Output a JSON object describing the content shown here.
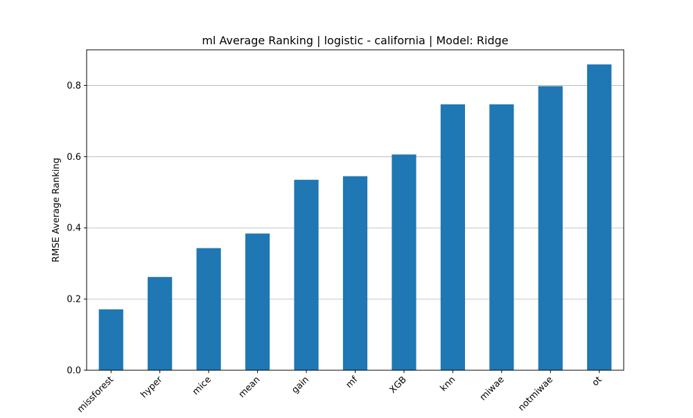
{
  "chart_data": {
    "type": "bar",
    "title": "ml Average Ranking | logistic - california | Model: Ridge",
    "xlabel": "",
    "ylabel": "RMSE Average Ranking",
    "categories": [
      "missforest",
      "hyper",
      "mice",
      "mean",
      "gain",
      "mf",
      "XGB",
      "knn",
      "miwae",
      "notmiwae",
      "ot"
    ],
    "values": [
      0.171,
      0.262,
      0.343,
      0.384,
      0.535,
      0.545,
      0.606,
      0.747,
      0.747,
      0.798,
      0.859
    ],
    "ylim": [
      0,
      0.9
    ],
    "yticks": [
      0.0,
      0.2,
      0.4,
      0.6,
      0.8
    ],
    "ytick_labels": [
      "0.0",
      "0.2",
      "0.4",
      "0.6",
      "0.8"
    ],
    "grid": "y",
    "bar_color": "#1f77b4",
    "grid_color": "#b0b0b0"
  }
}
